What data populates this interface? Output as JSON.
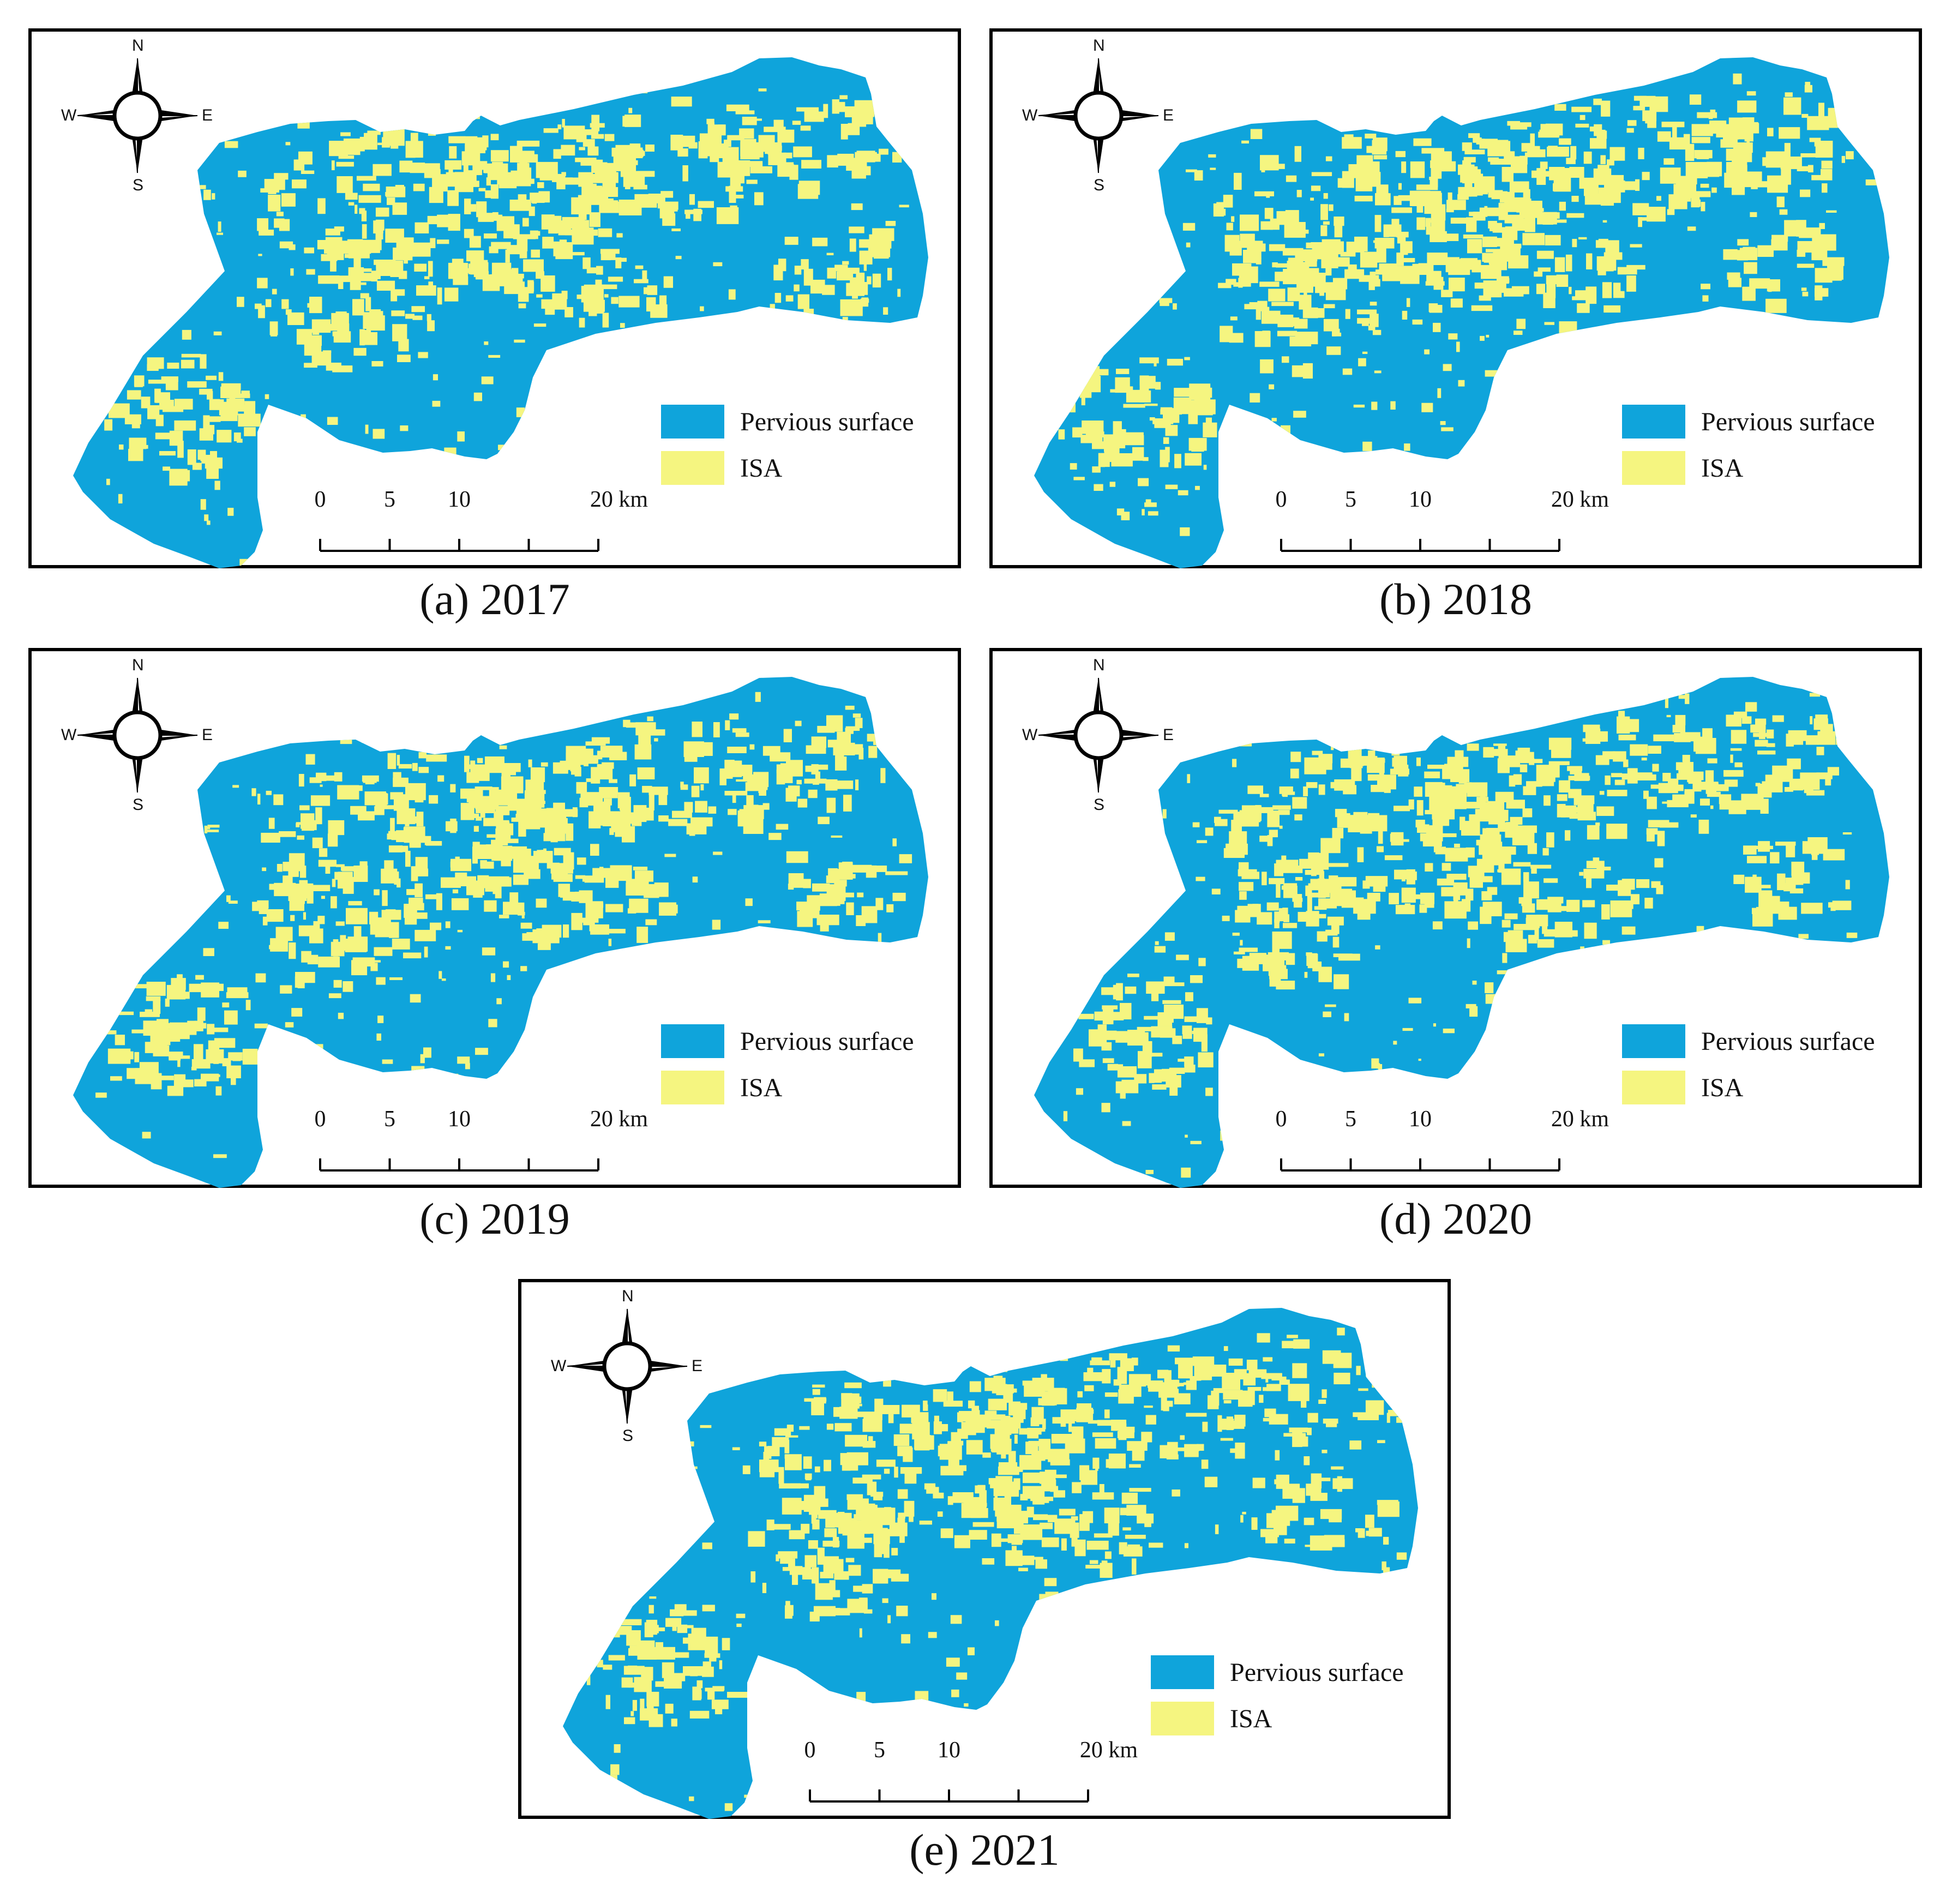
{
  "colors": {
    "pervious": "#0fa4db",
    "isa": "#f5f580",
    "frame": "#000000"
  },
  "legend": {
    "pervious_label": "Pervious surface",
    "isa_label": "ISA"
  },
  "scale": {
    "ticks": [
      "0",
      "5",
      "10",
      "20 km"
    ]
  },
  "compass": {
    "n": "N",
    "e": "E",
    "s": "S",
    "w": "W",
    "icon": "north-arrow-compass-icon"
  },
  "panels": [
    {
      "caption": "(a) 2017"
    },
    {
      "caption": "(b) 2018"
    },
    {
      "caption": "(c) 2019"
    },
    {
      "caption": "(d) 2020"
    },
    {
      "caption": "(e) 2021"
    }
  ]
}
